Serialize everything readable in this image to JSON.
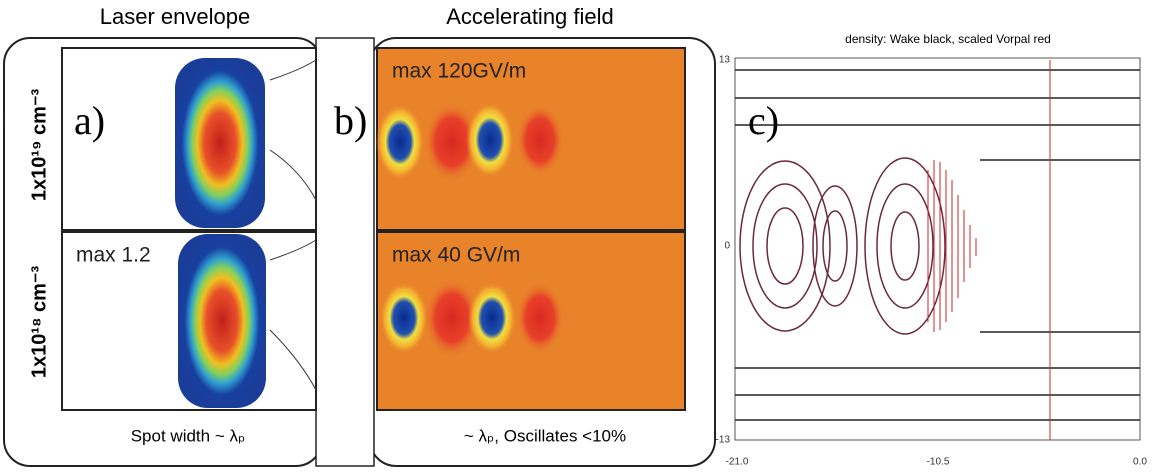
{
  "panels": {
    "laser_title": "Laser envelope",
    "field_title": "Accelerating field",
    "a_label": "a)",
    "b_label": "b)",
    "c_label": "c)",
    "density_top": "1x10¹⁹ cm⁻³",
    "density_bottom": "1x10¹⁸ cm⁻³",
    "max_envelope": "max 1.2",
    "max_field_top": "max 120GV/m",
    "max_field_bottom": "max 40 GV/m",
    "spot_caption": "Spot width  ~ λₚ",
    "field_caption": "~ λₚ, Oscillates <10%",
    "c_title": "density: Wake black, scaled Vorpal red",
    "c_yticks": [
      "13",
      "0",
      "-13"
    ],
    "c_xticks": [
      "-21.0",
      "-10.5",
      "0.0"
    ]
  }
}
